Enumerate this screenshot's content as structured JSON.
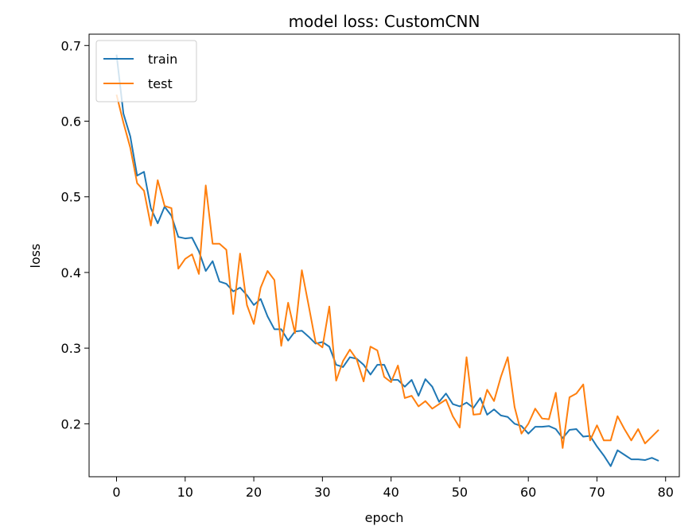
{
  "chart_data": {
    "type": "line",
    "title": "model loss: CustomCNN",
    "xlabel": "epoch",
    "ylabel": "loss",
    "xlim": [
      -4,
      82
    ],
    "ylim": [
      0.13,
      0.715
    ],
    "xticks": [
      0,
      10,
      20,
      30,
      40,
      50,
      60,
      70,
      80
    ],
    "yticks": [
      0.2,
      0.3,
      0.4,
      0.5,
      0.6,
      0.7
    ],
    "grid": false,
    "legend": "top-left",
    "series": [
      {
        "name": "train",
        "color": "#1f77b4",
        "values": [
          0.688,
          0.61,
          0.58,
          0.528,
          0.533,
          0.485,
          0.465,
          0.487,
          0.475,
          0.447,
          0.445,
          0.446,
          0.428,
          0.402,
          0.415,
          0.388,
          0.385,
          0.375,
          0.38,
          0.37,
          0.357,
          0.365,
          0.342,
          0.325,
          0.325,
          0.31,
          0.322,
          0.323,
          0.315,
          0.306,
          0.308,
          0.302,
          0.278,
          0.275,
          0.288,
          0.286,
          0.278,
          0.265,
          0.278,
          0.278,
          0.258,
          0.258,
          0.249,
          0.258,
          0.237,
          0.259,
          0.249,
          0.229,
          0.24,
          0.226,
          0.223,
          0.228,
          0.221,
          0.234,
          0.212,
          0.219,
          0.211,
          0.209,
          0.2,
          0.197,
          0.187,
          0.196,
          0.196,
          0.197,
          0.193,
          0.181,
          0.192,
          0.193,
          0.183,
          0.184,
          0.17,
          0.158,
          0.144,
          0.165,
          0.159,
          0.153,
          0.153,
          0.152,
          0.155,
          0.151
        ]
      },
      {
        "name": "test",
        "color": "#ff7f0e",
        "values": [
          0.635,
          0.598,
          0.565,
          0.518,
          0.508,
          0.462,
          0.522,
          0.488,
          0.485,
          0.405,
          0.418,
          0.424,
          0.398,
          0.515,
          0.438,
          0.438,
          0.43,
          0.345,
          0.425,
          0.357,
          0.332,
          0.38,
          0.402,
          0.39,
          0.303,
          0.36,
          0.32,
          0.403,
          0.356,
          0.308,
          0.301,
          0.355,
          0.257,
          0.283,
          0.298,
          0.285,
          0.256,
          0.302,
          0.297,
          0.262,
          0.255,
          0.277,
          0.234,
          0.237,
          0.223,
          0.23,
          0.22,
          0.226,
          0.232,
          0.21,
          0.195,
          0.288,
          0.212,
          0.213,
          0.245,
          0.23,
          0.262,
          0.288,
          0.222,
          0.187,
          0.2,
          0.22,
          0.207,
          0.206,
          0.241,
          0.168,
          0.235,
          0.24,
          0.252,
          0.178,
          0.198,
          0.178,
          0.178,
          0.21,
          0.193,
          0.178,
          0.193,
          0.174,
          0.183,
          0.192
        ]
      }
    ]
  }
}
